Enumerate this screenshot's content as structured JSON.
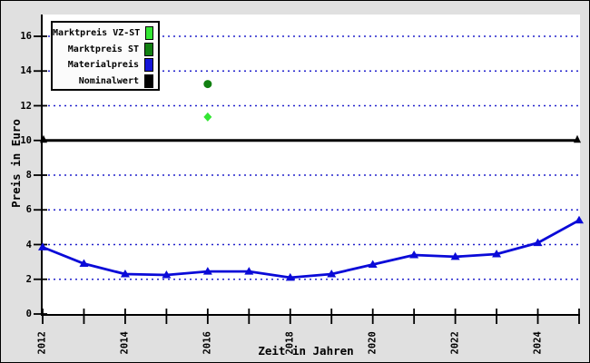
{
  "axes": {
    "x_title": "Zeit in Jahren",
    "y_title": "Preis in Euro"
  },
  "legend": {
    "position": "top-left",
    "items": [
      {
        "label": "Marktpreis VZ-ST",
        "color": "#33e633"
      },
      {
        "label": "Marktpreis ST",
        "color": "#118011"
      },
      {
        "label": "Materialpreis",
        "color": "#1414d8"
      },
      {
        "label": "Nominalwert",
        "color": "#000000"
      }
    ]
  },
  "colors": {
    "background": "#e0e0e0",
    "plot_background": "#ffffff",
    "grid": "#2222cc",
    "axis": "#000000",
    "series_blue": "#0a0ad8",
    "series_dark_green": "#118011",
    "series_light_green": "#33e633",
    "series_black": "#000000"
  },
  "chart_data": {
    "type": "line",
    "title": "",
    "xlabel": "Zeit in Jahren",
    "ylabel": "Preis in Euro",
    "xlim": [
      2012,
      2025
    ],
    "ylim": [
      0,
      17.2
    ],
    "grid": {
      "horizontal": true,
      "vertical": false,
      "style": "dotted",
      "color": "#2222cc"
    },
    "yticks": [
      0,
      2,
      4,
      6,
      8,
      10,
      12,
      14,
      16
    ],
    "xticks": [
      2012,
      2013,
      2014,
      2015,
      2016,
      2017,
      2018,
      2019,
      2020,
      2021,
      2022,
      2023,
      2024,
      2025
    ],
    "xtick_labels": [
      "2012",
      "2014",
      "2016",
      "2018",
      "2020",
      "2022",
      "2024"
    ],
    "xtick_labeled_years": [
      2012,
      2014,
      2016,
      2018,
      2020,
      2022,
      2024
    ],
    "series": [
      {
        "name": "Materialpreis",
        "type": "line",
        "color": "#0a0ad8",
        "marker": "triangle-up",
        "x": [
          2012,
          2013,
          2014,
          2015,
          2016,
          2017,
          2018,
          2019,
          2020,
          2021,
          2022,
          2023,
          2024,
          2025
        ],
        "values": [
          3.85,
          2.9,
          2.3,
          2.25,
          2.45,
          2.45,
          2.1,
          2.3,
          2.85,
          3.4,
          3.3,
          3.45,
          4.1,
          5.4
        ]
      },
      {
        "name": "Marktpreis ST",
        "type": "scatter",
        "color": "#118011",
        "marker": "circle",
        "x": [
          2016
        ],
        "values": [
          13.25
        ]
      },
      {
        "name": "Marktpreis VZ-ST",
        "type": "scatter",
        "color": "#33e633",
        "marker": "diamond",
        "x": [
          2016
        ],
        "values": [
          11.35
        ]
      },
      {
        "name": "Nominalwert",
        "type": "hline",
        "color": "#000000",
        "value": 10,
        "end_markers": "triangle-up"
      }
    ]
  }
}
